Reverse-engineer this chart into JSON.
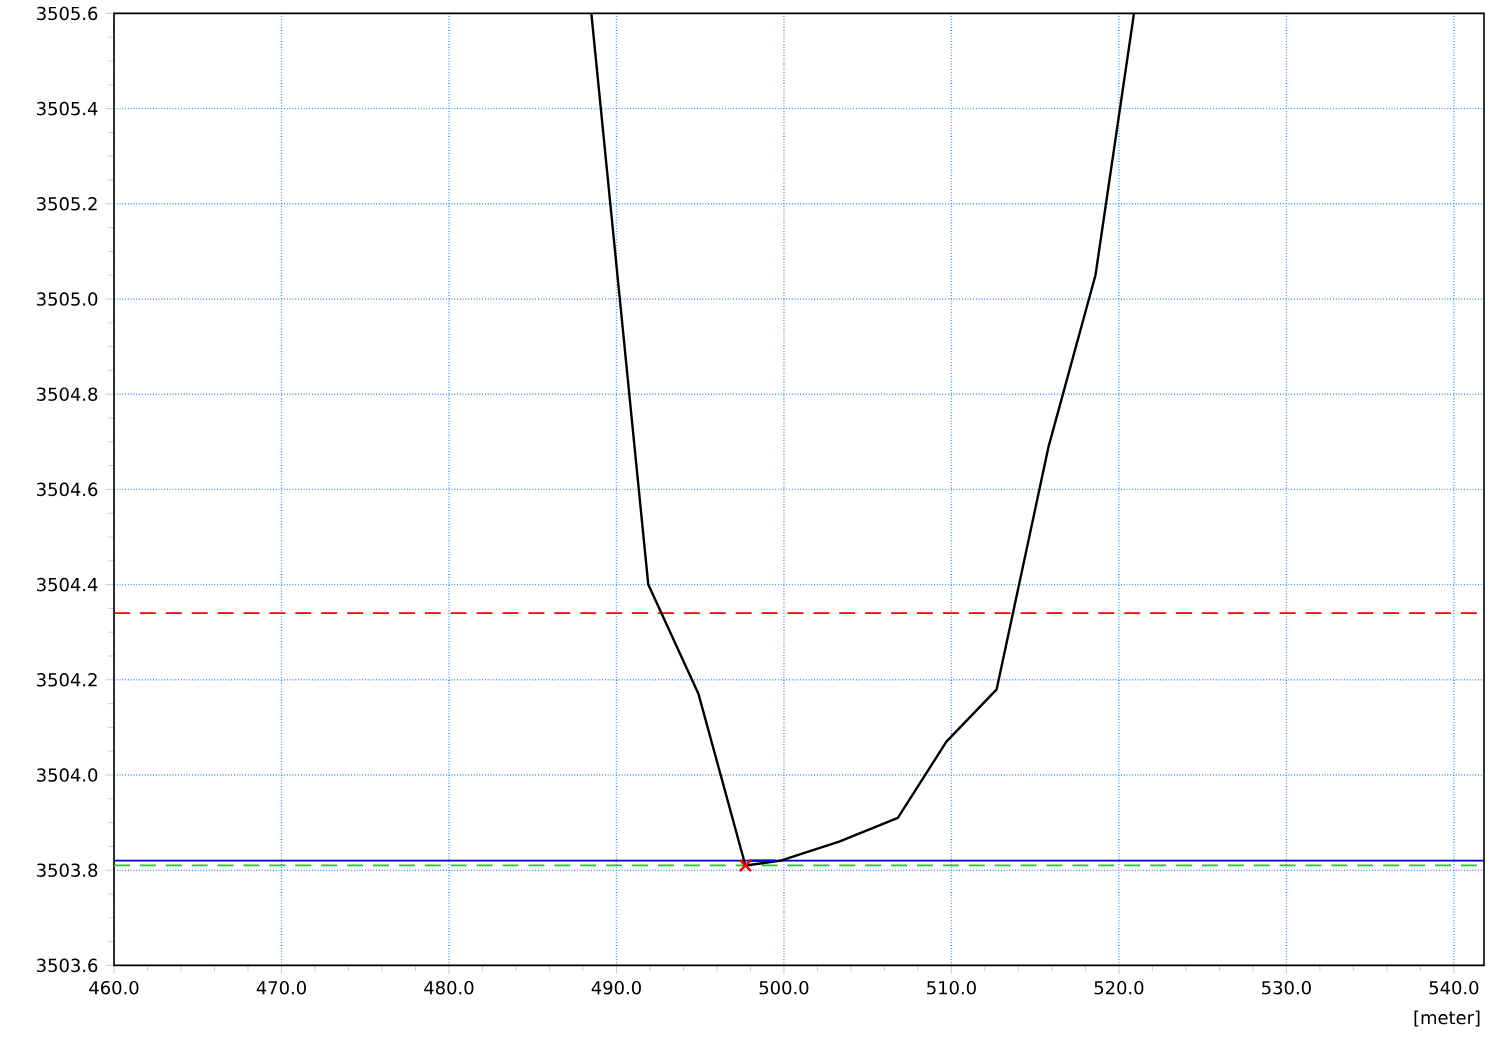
{
  "chart_data": {
    "type": "line",
    "xlabel": "[meter]",
    "series": [
      {
        "color": "#000000",
        "marker": "none",
        "x": [
          488.5,
          491.9,
          494.9,
          497.7,
          499.8,
          503.3,
          506.8,
          509.7,
          512.7,
          515.8,
          518.6,
          520.9
        ],
        "values": [
          3505.6,
          3504.4,
          3504.17,
          3503.81,
          3503.82,
          3503.86,
          3503.91,
          3504.07,
          3504.18,
          3504.69,
          3505.05,
          3505.6
        ]
      },
      {
        "type": "scatter",
        "color": "#ff0000",
        "marker": "cross",
        "x": [
          497.7
        ],
        "values": [
          3503.81
        ]
      },
      {
        "type": "line",
        "color": "#0000ff",
        "marker": "none",
        "x": [
          497.9,
          499.5
        ],
        "values": [
          3503.82,
          3503.82
        ]
      }
    ],
    "ref_lines": [
      {
        "axis": "y",
        "value": 3504.34,
        "color": "#ff0000",
        "line_style": "dashed"
      },
      {
        "axis": "y",
        "value": 3503.82,
        "color": "#0000cc",
        "line_style": "solid"
      },
      {
        "axis": "y",
        "value": 3503.81,
        "color": "#33bb33",
        "line_style": "dashed"
      }
    ],
    "xlim": [
      460,
      541.8
    ],
    "ylim": [
      3503.6,
      3505.6
    ],
    "xticks": [
      {
        "value": 460,
        "label": "460.0"
      },
      {
        "value": 470,
        "label": "470.0"
      },
      {
        "value": 480,
        "label": "480.0"
      },
      {
        "value": 490,
        "label": "490.0"
      },
      {
        "value": 500,
        "label": "500.0"
      },
      {
        "value": 510,
        "label": "510.0"
      },
      {
        "value": 520,
        "label": "520.0"
      },
      {
        "value": 530,
        "label": "530.0"
      },
      {
        "value": 540,
        "label": "540.0"
      }
    ],
    "yticks": [
      {
        "value": 3503.6,
        "label": "3503.6"
      },
      {
        "value": 3503.8,
        "label": "3503.8"
      },
      {
        "value": 3504.0,
        "label": "3504.0"
      },
      {
        "value": 3504.2,
        "label": "3504.2"
      },
      {
        "value": 3504.4,
        "label": "3504.4"
      },
      {
        "value": 3504.6,
        "label": "3504.6"
      },
      {
        "value": 3504.8,
        "label": "3504.8"
      },
      {
        "value": 3505.0,
        "label": "3505.0"
      },
      {
        "value": 3505.2,
        "label": "3505.2"
      },
      {
        "value": 3505.4,
        "label": "3505.4"
      },
      {
        "value": 3505.6,
        "label": "3505.6"
      }
    ],
    "grid": true
  }
}
